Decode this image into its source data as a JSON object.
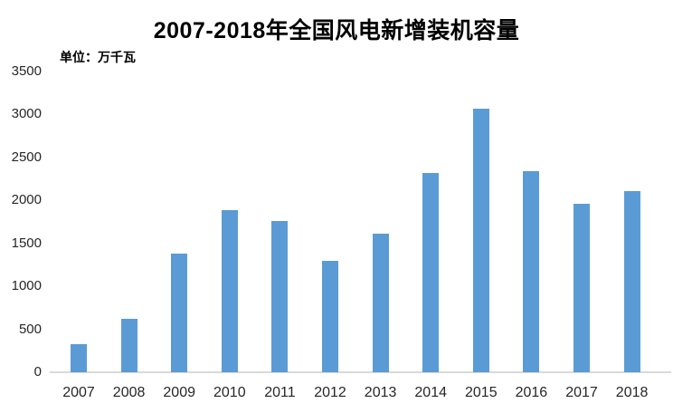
{
  "chart_data": {
    "type": "bar",
    "title": "2007-2018年全国风电新增装机容量",
    "unit_label": "单位：万千瓦",
    "categories": [
      "2007",
      "2008",
      "2009",
      "2010",
      "2011",
      "2012",
      "2013",
      "2014",
      "2015",
      "2016",
      "2017",
      "2018"
    ],
    "values": [
      330,
      620,
      1385,
      1890,
      1765,
      1295,
      1610,
      2320,
      3070,
      2340,
      1965,
      2110
    ],
    "xlabel": "",
    "ylabel": "",
    "ylim": [
      0,
      3500
    ],
    "yticks": [
      0,
      500,
      1000,
      1500,
      2000,
      2500,
      3000,
      3500
    ],
    "grid": false,
    "legend": "none",
    "bar_color": "#5b9bd5",
    "axis_line_color": "#d9d9d9",
    "tick_label_color": "#262626",
    "title_color": "#000000",
    "background_color": "#ffffff"
  }
}
